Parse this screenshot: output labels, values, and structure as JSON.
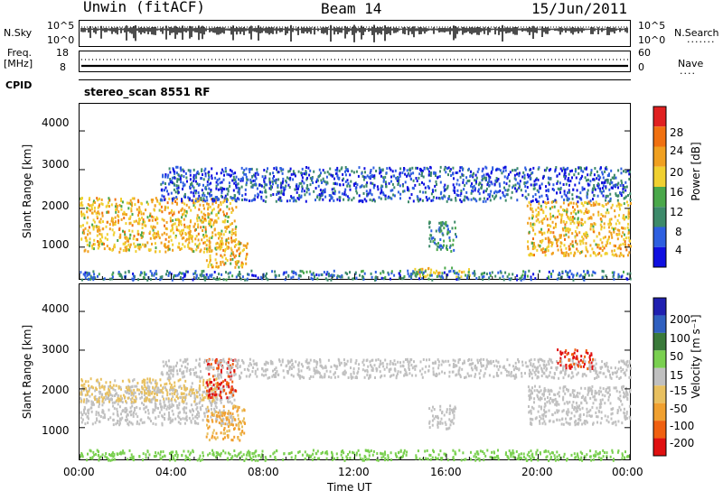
{
  "header": {
    "station": "Unwin",
    "mode": "(fitACF)",
    "beam": "Beam 14",
    "date": "15/Jun/2011"
  },
  "top_panels": {
    "nsky_label": "N.Sky",
    "nsky_tick_top": "10^5",
    "nsky_tick_bottom": "10^0",
    "nsearch_label": "N.Search",
    "nsearch_tick_top": "10^5",
    "nsearch_tick_bottom": "10^0",
    "freq_label": "Freq.",
    "freq_unit": "[MHz]",
    "freq_tick_top": "18",
    "freq_tick_bottom": "8",
    "nave_label": "Nave",
    "nave_tick_top": "60",
    "nave_tick_bottom": "0",
    "cpid_label": "CPID",
    "cpid_value": "stereo_scan 8551 RF"
  },
  "colors": {
    "power": [
      "#1010e0",
      "#2e5fe0",
      "#3d8a6a",
      "#4aa84a",
      "#f0d030",
      "#f0a020",
      "#f07010",
      "#e02020"
    ],
    "velocity": [
      "#2020b0",
      "#3060c0",
      "#3a7a3a",
      "#7ad050",
      "#c0c0c0",
      "#e8c060",
      "#f0a030",
      "#f06010",
      "#e01010"
    ]
  },
  "chart_data": [
    {
      "type": "heatmap",
      "title": "",
      "xlabel": "Time UT",
      "ylabel": "Slant Range [km]",
      "x_ticks": [
        "00:00",
        "04:00",
        "08:00",
        "12:00",
        "16:00",
        "20:00",
        "00:00"
      ],
      "y_ticks": [
        "1000",
        "2000",
        "3000",
        "4000"
      ],
      "xlim_hours": [
        0,
        24
      ],
      "ylim_km": [
        180,
        4700
      ],
      "colorbar": {
        "label": "Power [dB]",
        "ticks": [
          "4",
          "8",
          "12",
          "16",
          "20",
          "24",
          "28"
        ],
        "range": [
          0,
          32
        ]
      },
      "regions": [
        {
          "t0": 0.0,
          "t1": 6.8,
          "r0": 900,
          "r1": 2300,
          "value": 20
        },
        {
          "t0": 5.5,
          "t1": 7.3,
          "r0": 500,
          "r1": 1200,
          "value": 20
        },
        {
          "t0": 3.5,
          "t1": 24.0,
          "r0": 2200,
          "r1": 3100,
          "value": 6
        },
        {
          "t0": 15.2,
          "t1": 16.4,
          "r0": 900,
          "r1": 1700,
          "value": 10
        },
        {
          "t0": 14.5,
          "t1": 17.0,
          "r0": 250,
          "r1": 500,
          "value": 18
        },
        {
          "t0": 19.5,
          "t1": 24.0,
          "r0": 800,
          "r1": 2200,
          "value": 20
        },
        {
          "t0": 0.0,
          "t1": 24.0,
          "r0": 180,
          "r1": 420,
          "value": 8
        }
      ]
    },
    {
      "type": "heatmap",
      "title": "",
      "xlabel": "Time UT",
      "ylabel": "Slant Range [km]",
      "x_ticks": [
        "00:00",
        "04:00",
        "08:00",
        "12:00",
        "16:00",
        "20:00",
        "00:00"
      ],
      "y_ticks": [
        "1000",
        "2000",
        "3000",
        "4000"
      ],
      "xlim_hours": [
        0,
        24
      ],
      "ylim_km": [
        180,
        4700
      ],
      "colorbar": {
        "label": "Velocity [m s⁻¹]",
        "ticks": [
          "200",
          "100",
          "50",
          "15",
          "-15",
          "-50",
          "-100",
          "-200"
        ],
        "range": [
          -250,
          250
        ]
      },
      "regions": [
        {
          "t0": 0.0,
          "t1": 6.8,
          "r0": 1100,
          "r1": 2100,
          "value": 0
        },
        {
          "t0": 0.0,
          "t1": 6.0,
          "r0": 1700,
          "r1": 2300,
          "value": -40
        },
        {
          "t0": 5.5,
          "t1": 7.2,
          "r0": 700,
          "r1": 1600,
          "value": -90
        },
        {
          "t0": 5.5,
          "t1": 6.8,
          "r0": 1800,
          "r1": 2800,
          "value": -200
        },
        {
          "t0": 3.5,
          "t1": 24.0,
          "r0": 2300,
          "r1": 2800,
          "value": 0
        },
        {
          "t0": 15.2,
          "t1": 16.4,
          "r0": 1000,
          "r1": 1600,
          "value": 0
        },
        {
          "t0": 19.5,
          "t1": 24.0,
          "r0": 1100,
          "r1": 2100,
          "value": 0
        },
        {
          "t0": 20.8,
          "t1": 22.4,
          "r0": 2550,
          "r1": 3050,
          "value": -200
        },
        {
          "t0": 0.0,
          "t1": 24.0,
          "r0": 180,
          "r1": 450,
          "value": 60
        }
      ]
    }
  ]
}
